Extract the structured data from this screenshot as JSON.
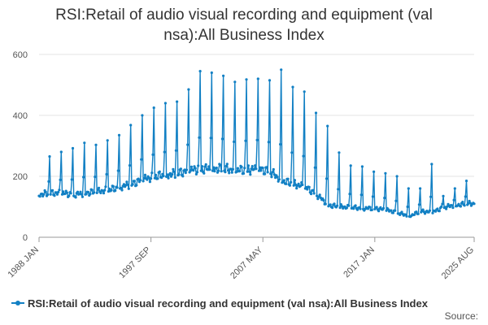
{
  "chart_data": {
    "type": "line",
    "title_line1": "RSI:Retail of audio visual recording and equipment (val",
    "title_line2": "nsa):All Business Index",
    "x_tick_labels": [
      "1988 JAN",
      "1997 SEP",
      "2007 MAY",
      "2017 JAN",
      "2025 AUG"
    ],
    "x_tick_dates": [
      "1988-01",
      "1997-09",
      "2007-05",
      "2017-01",
      "2025-08"
    ],
    "x_range": [
      "1988-01",
      "2025-08"
    ],
    "y_ticks": [
      0,
      200,
      400,
      600
    ],
    "ylim": [
      0,
      600
    ],
    "grid": "horizontal",
    "legend_position": "bottom-left",
    "source_label": "Source:",
    "series": [
      {
        "name": "RSI:Retail of audio visual recording and equipment (val nsa):All Business Index",
        "color": "#1280c4",
        "annual_december_peaks": [
          [
            "1988",
            265
          ],
          [
            "1989",
            280
          ],
          [
            "1990",
            292
          ],
          [
            "1991",
            310
          ],
          [
            "1992",
            303
          ],
          [
            "1993",
            318
          ],
          [
            "1994",
            335
          ],
          [
            "1995",
            368
          ],
          [
            "1996",
            400
          ],
          [
            "1997",
            425
          ],
          [
            "1998",
            440
          ],
          [
            "1999",
            445
          ],
          [
            "2000",
            485
          ],
          [
            "2001",
            545
          ],
          [
            "2002",
            540
          ],
          [
            "2003",
            530
          ],
          [
            "2004",
            510
          ],
          [
            "2005",
            518
          ],
          [
            "2006",
            520
          ],
          [
            "2007",
            515
          ],
          [
            "2008",
            550
          ],
          [
            "2009",
            493
          ],
          [
            "2010",
            478
          ],
          [
            "2011",
            408
          ],
          [
            "2012",
            365
          ],
          [
            "2013",
            278
          ],
          [
            "2014",
            235
          ],
          [
            "2015",
            232
          ],
          [
            "2016",
            215
          ],
          [
            "2017",
            210
          ],
          [
            "2018",
            200
          ],
          [
            "2019",
            160
          ],
          [
            "2020",
            160
          ],
          [
            "2021",
            240
          ],
          [
            "2022",
            135
          ],
          [
            "2023",
            160
          ],
          [
            "2024",
            185
          ]
        ],
        "annual_base_levels": [
          [
            "1988",
            140
          ],
          [
            "1989",
            145
          ],
          [
            "1990",
            145
          ],
          [
            "1991",
            140
          ],
          [
            "1992",
            145
          ],
          [
            "1993",
            150
          ],
          [
            "1994",
            155
          ],
          [
            "1995",
            165
          ],
          [
            "1996",
            175
          ],
          [
            "1997",
            190
          ],
          [
            "1998",
            200
          ],
          [
            "1999",
            205
          ],
          [
            "2000",
            210
          ],
          [
            "2001",
            220
          ],
          [
            "2002",
            225
          ],
          [
            "2003",
            225
          ],
          [
            "2004",
            225
          ],
          [
            "2005",
            220
          ],
          [
            "2006",
            222
          ],
          [
            "2007",
            225
          ],
          [
            "2008",
            215
          ],
          [
            "2009",
            185
          ],
          [
            "2010",
            175
          ],
          [
            "2011",
            165
          ],
          [
            "2012",
            140
          ],
          [
            "2013",
            105
          ],
          [
            "2014",
            100
          ],
          [
            "2015",
            98
          ],
          [
            "2016",
            95
          ],
          [
            "2017",
            95
          ],
          [
            "2018",
            90
          ],
          [
            "2019",
            80
          ],
          [
            "2020",
            70
          ],
          [
            "2021",
            85
          ],
          [
            "2022",
            82
          ],
          [
            "2023",
            100
          ],
          [
            "2024",
            105
          ],
          [
            "2025",
            110
          ]
        ],
        "last_value": [
          "2025-08",
          110
        ]
      }
    ]
  }
}
